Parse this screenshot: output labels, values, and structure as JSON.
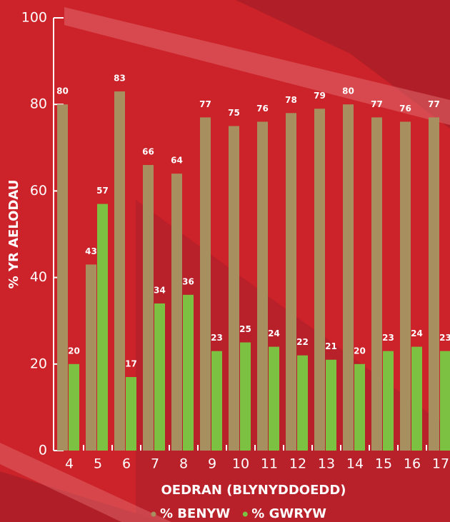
{
  "chart_data": {
    "type": "bar",
    "x_label": "OEDRAN (BLYNYDDOEDD)",
    "y_label": "% YR AELODAU",
    "categories": [
      "4",
      "5",
      "6",
      "7",
      "8",
      "9",
      "10",
      "11",
      "12",
      "13",
      "14",
      "15",
      "16",
      "17"
    ],
    "series": [
      {
        "name": "% BENYW",
        "color": "#a78f5f",
        "values": [
          80,
          43,
          83,
          66,
          64,
          77,
          75,
          76,
          78,
          79,
          80,
          77,
          76,
          77
        ]
      },
      {
        "name": "% GWRYW",
        "color": "#7cc142",
        "values": [
          20,
          57,
          17,
          34,
          36,
          23,
          25,
          24,
          22,
          21,
          20,
          23,
          24,
          23
        ]
      }
    ],
    "ylim": [
      0,
      100
    ],
    "yticks": [
      0,
      20,
      40,
      60,
      80,
      100
    ]
  }
}
